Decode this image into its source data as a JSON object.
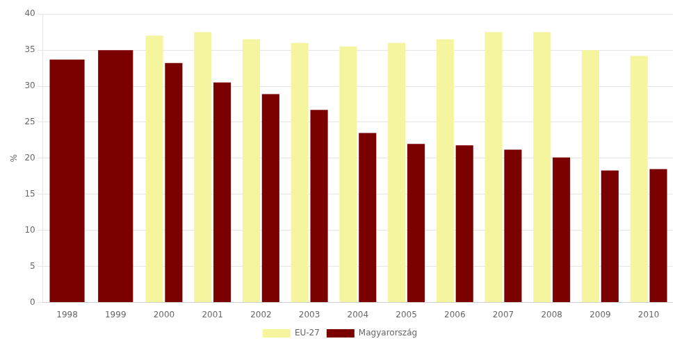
{
  "chart_data": {
    "type": "bar",
    "categories": [
      "1998",
      "1999",
      "2000",
      "2001",
      "2002",
      "2003",
      "2004",
      "2005",
      "2006",
      "2007",
      "2008",
      "2009",
      "2010"
    ],
    "series": [
      {
        "name": "EU-27",
        "color": "#f5f5a0",
        "values": [
          null,
          null,
          37.0,
          37.5,
          36.5,
          36.0,
          35.5,
          36.0,
          36.5,
          37.5,
          37.5,
          35.0,
          34.2
        ]
      },
      {
        "name": "Magyarország",
        "color": "#7b0000",
        "values": [
          33.7,
          35.0,
          33.2,
          30.5,
          28.9,
          26.7,
          23.5,
          22.0,
          21.8,
          21.2,
          20.1,
          18.3,
          18.5
        ]
      }
    ],
    "ylabel": "%",
    "ylim": [
      0,
      40
    ],
    "yticks": [
      0,
      5,
      10,
      15,
      20,
      25,
      30,
      35,
      40
    ],
    "grid": true,
    "legend": "bottom"
  }
}
